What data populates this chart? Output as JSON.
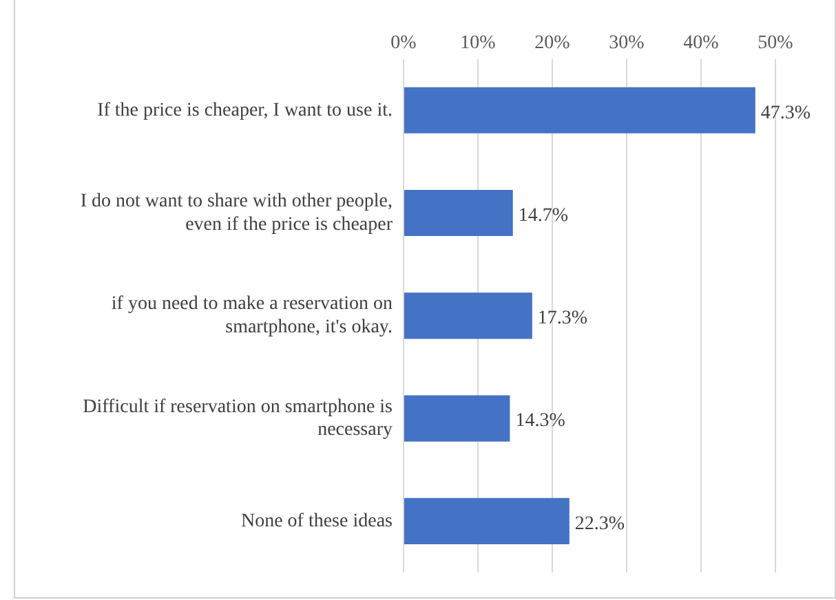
{
  "chart_data": {
    "type": "bar",
    "orientation": "horizontal",
    "categories": [
      "If the price is cheaper, I want to use it.",
      "I do not want to share with other people, even if the price is cheaper",
      "if you need to make a reservation on smartphone, it's okay.",
      "Difficult if reservation on smartphone is necessary",
      "None of these ideas"
    ],
    "values": [
      47.3,
      14.7,
      17.3,
      14.3,
      22.3
    ],
    "value_labels": [
      "47.3%",
      "14.7%",
      "17.3%",
      "14.3%",
      "22.3%"
    ],
    "color": "#4472c4",
    "xlim": [
      0,
      50
    ],
    "xticks": [
      {
        "value": 0,
        "label": "0%"
      },
      {
        "value": 10,
        "label": "10%"
      },
      {
        "value": 20,
        "label": "20%"
      },
      {
        "value": 30,
        "label": "30%"
      },
      {
        "value": 40,
        "label": "40%"
      },
      {
        "value": 50,
        "label": "50%"
      }
    ],
    "grid": "x",
    "legend": false
  }
}
